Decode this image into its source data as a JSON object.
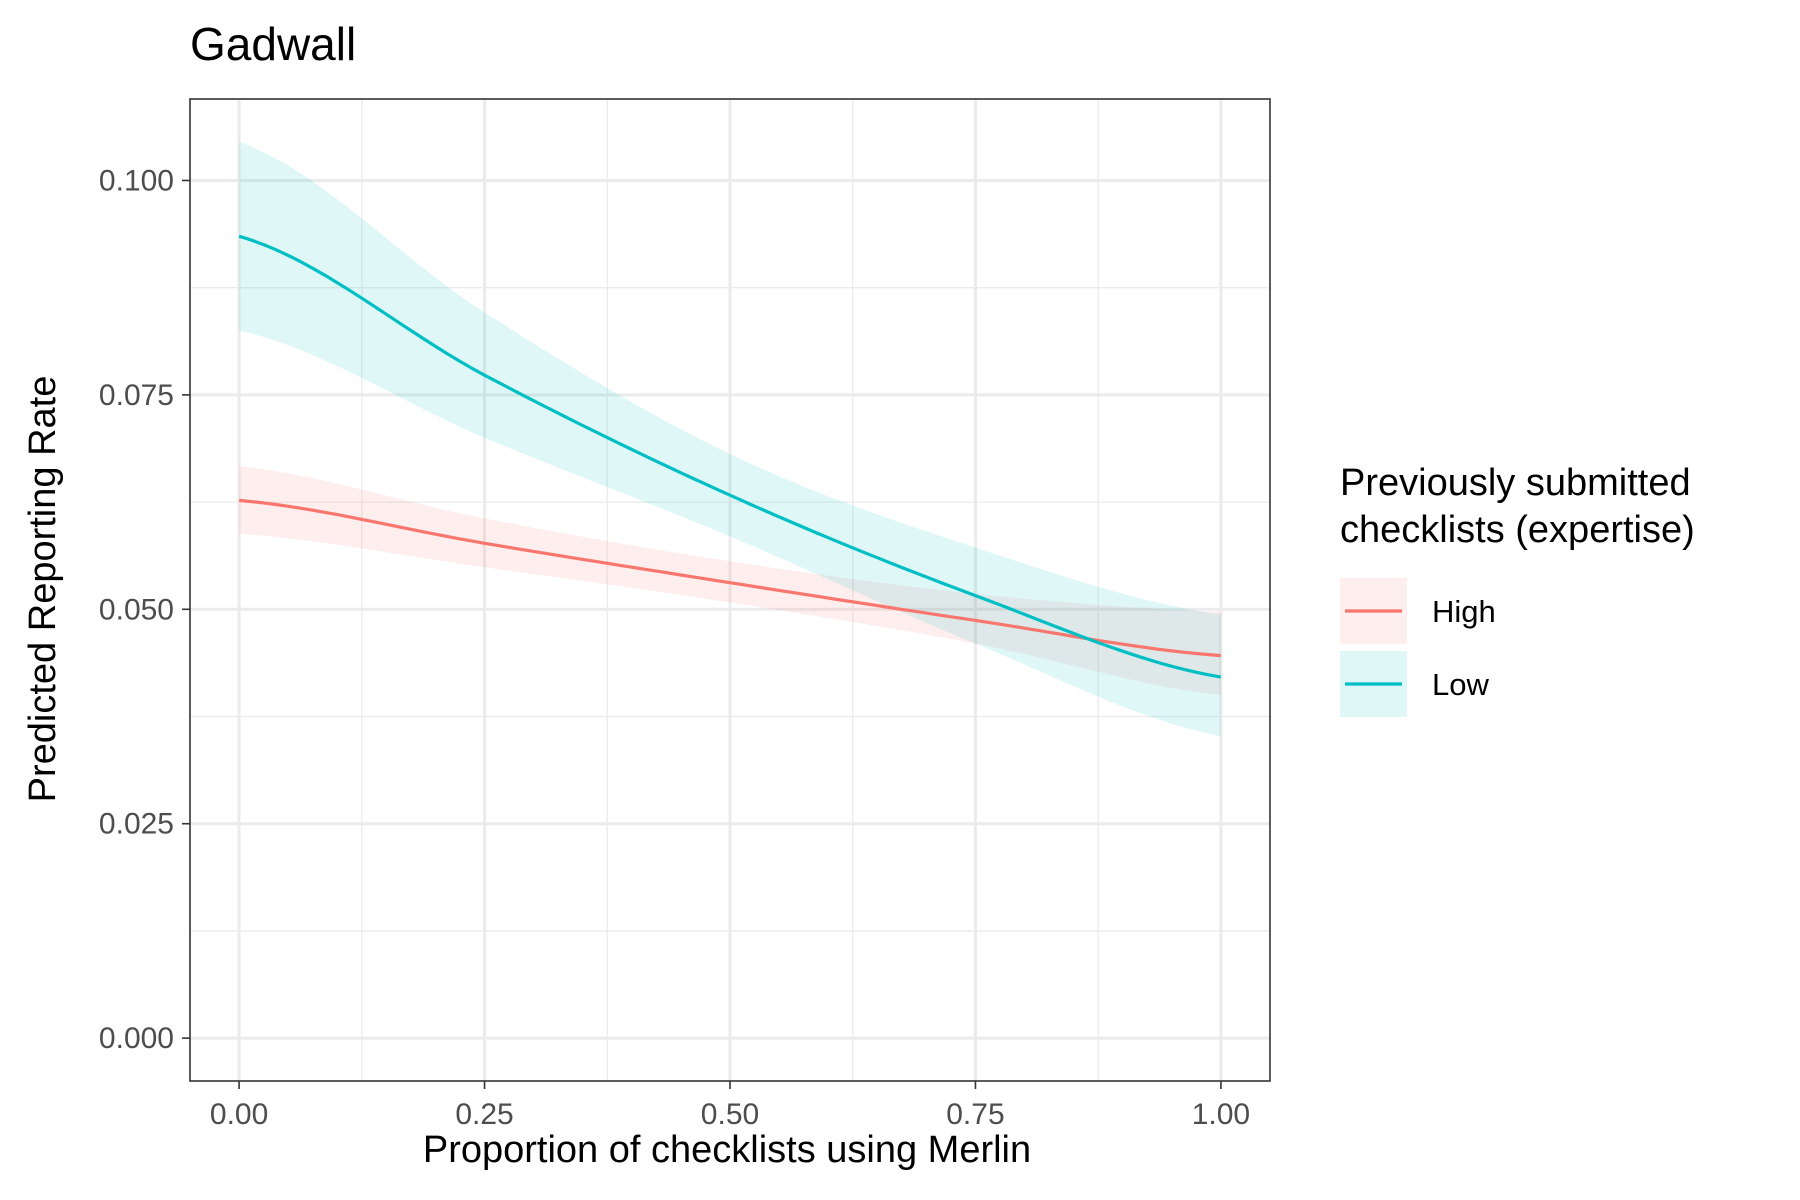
{
  "chart_data": {
    "type": "line",
    "title": "Gadwall",
    "xlabel": "Proportion of checklists using Merlin",
    "ylabel": "Predicted Reporting Rate",
    "xlim": [
      -0.05,
      1.05
    ],
    "ylim": [
      -0.005,
      0.1095
    ],
    "x_ticks": [
      0.0,
      0.25,
      0.5,
      0.75,
      1.0
    ],
    "x_tick_labels": [
      "0.00",
      "0.25",
      "0.50",
      "0.75",
      "1.00"
    ],
    "y_ticks": [
      0.0,
      0.025,
      0.05,
      0.075,
      0.1
    ],
    "y_tick_labels": [
      "0.000",
      "0.025",
      "0.050",
      "0.075",
      "0.100"
    ],
    "grid": true,
    "legend": {
      "title_lines": [
        "Previously submitted",
        "checklists (expertise)"
      ],
      "placement": "right"
    },
    "series": [
      {
        "name": "High",
        "color": "#F8766D",
        "x": [
          0.0,
          0.25,
          0.5,
          0.75,
          1.0
        ],
        "y": [
          0.0627,
          0.0577,
          0.0531,
          0.0487,
          0.0446
        ],
        "ci_low": [
          0.0588,
          0.0549,
          0.0508,
          0.046,
          0.04
        ],
        "ci_high": [
          0.0667,
          0.0606,
          0.0556,
          0.0518,
          0.0497
        ]
      },
      {
        "name": "Low",
        "color": "#00BFC4",
        "x": [
          0.0,
          0.25,
          0.5,
          0.75,
          1.0
        ],
        "y": [
          0.0935,
          0.0773,
          0.0633,
          0.0516,
          0.0421
        ],
        "ci_low": [
          0.0825,
          0.07,
          0.0585,
          0.046,
          0.0352
        ],
        "ci_high": [
          0.1045,
          0.0846,
          0.0681,
          0.0572,
          0.0494
        ]
      }
    ]
  }
}
